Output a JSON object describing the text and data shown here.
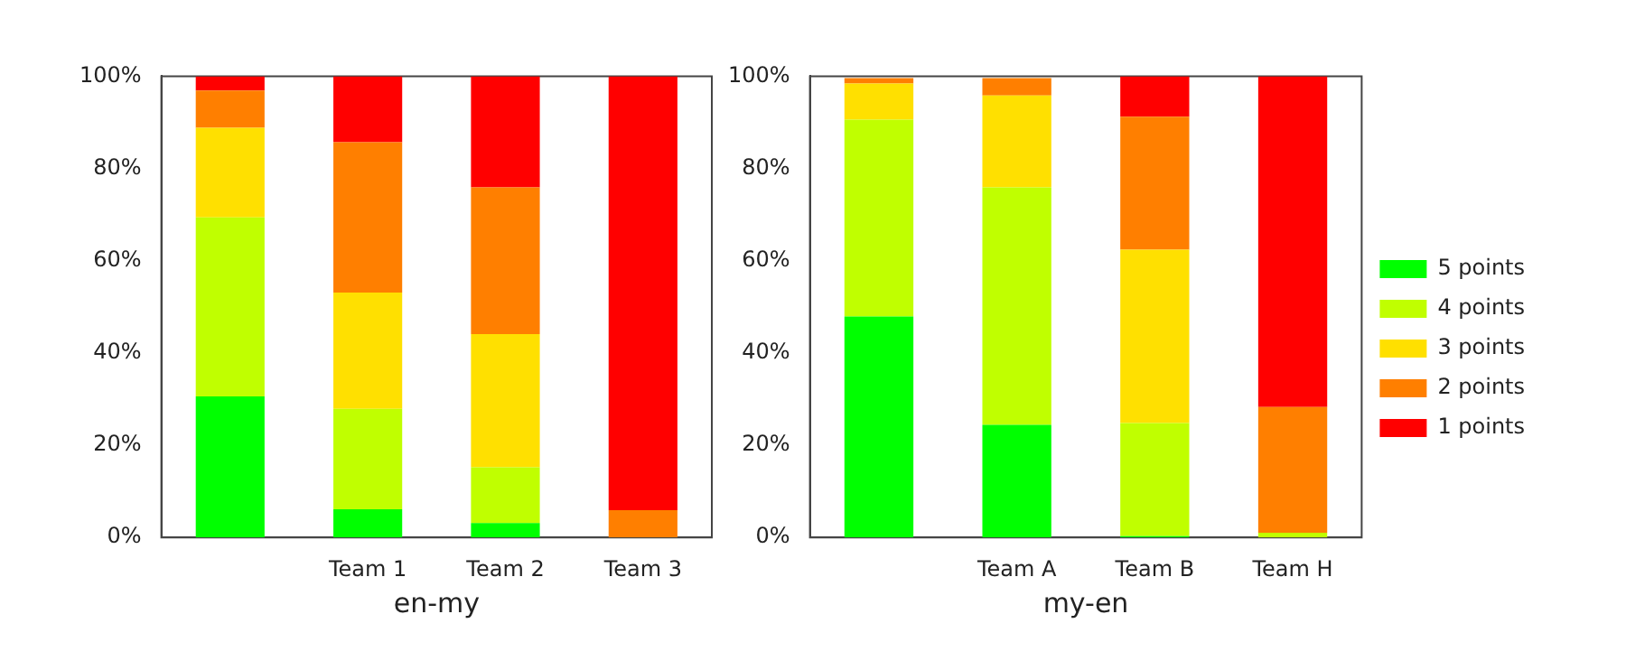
{
  "chart_data": [
    {
      "type": "bar",
      "stacked": true,
      "xlabel": "en-my",
      "categories": [
        null,
        "Team 1",
        "Team 2",
        "Team 3"
      ],
      "ylim": [
        0,
        100
      ],
      "yticks": [
        {
          "value": 0,
          "label": "0%"
        },
        {
          "value": 20,
          "label": "20%"
        },
        {
          "value": 40,
          "label": "40%"
        },
        {
          "value": 60,
          "label": "60%"
        },
        {
          "value": 80,
          "label": "80%"
        },
        {
          "value": 100,
          "label": "100%"
        }
      ],
      "grid": false,
      "legend": false,
      "series": [
        {
          "color": "#00ff00",
          "values": [
            30.6,
            6.1,
            3.1,
            0
          ]
        },
        {
          "color": "#c0ff00",
          "values": [
            38.8,
            21.8,
            12.1,
            0
          ]
        },
        {
          "color": "#ffe000",
          "values": [
            19.4,
            25.2,
            28.9,
            0
          ]
        },
        {
          "color": "#ff7f00",
          "values": [
            8.1,
            32.6,
            31.8,
            5.9
          ]
        },
        {
          "color": "#ff0000",
          "values": [
            3.1,
            14.3,
            24.1,
            94.1
          ]
        }
      ]
    },
    {
      "type": "bar",
      "stacked": true,
      "xlabel": "my-en",
      "categories": [
        null,
        "Team A",
        "Team B",
        "Team H"
      ],
      "ylim": [
        0,
        100
      ],
      "yticks": [
        {
          "value": 0,
          "label": "0%"
        },
        {
          "value": 20,
          "label": "20%"
        },
        {
          "value": 40,
          "label": "40%"
        },
        {
          "value": 60,
          "label": "60%"
        },
        {
          "value": 80,
          "label": "80%"
        },
        {
          "value": 100,
          "label": "100%"
        }
      ],
      "grid": false,
      "legend": "right",
      "series": [
        {
          "name": "5 points",
          "color": "#00ff00",
          "values": [
            47.9,
            24.4,
            0.3,
            0
          ]
        },
        {
          "name": "4 points",
          "color": "#c0ff00",
          "values": [
            42.7,
            51.5,
            24.5,
            1.0
          ]
        },
        {
          "name": "3 points",
          "color": "#ffe000",
          "values": [
            7.8,
            19.9,
            37.6,
            0
          ]
        },
        {
          "name": "2 points",
          "color": "#ff7f00",
          "values": [
            1.2,
            3.8,
            28.8,
            27.3
          ]
        },
        {
          "name": "1 points",
          "color": "#ff0000",
          "values": [
            0,
            0,
            8.8,
            71.7
          ]
        }
      ]
    }
  ]
}
